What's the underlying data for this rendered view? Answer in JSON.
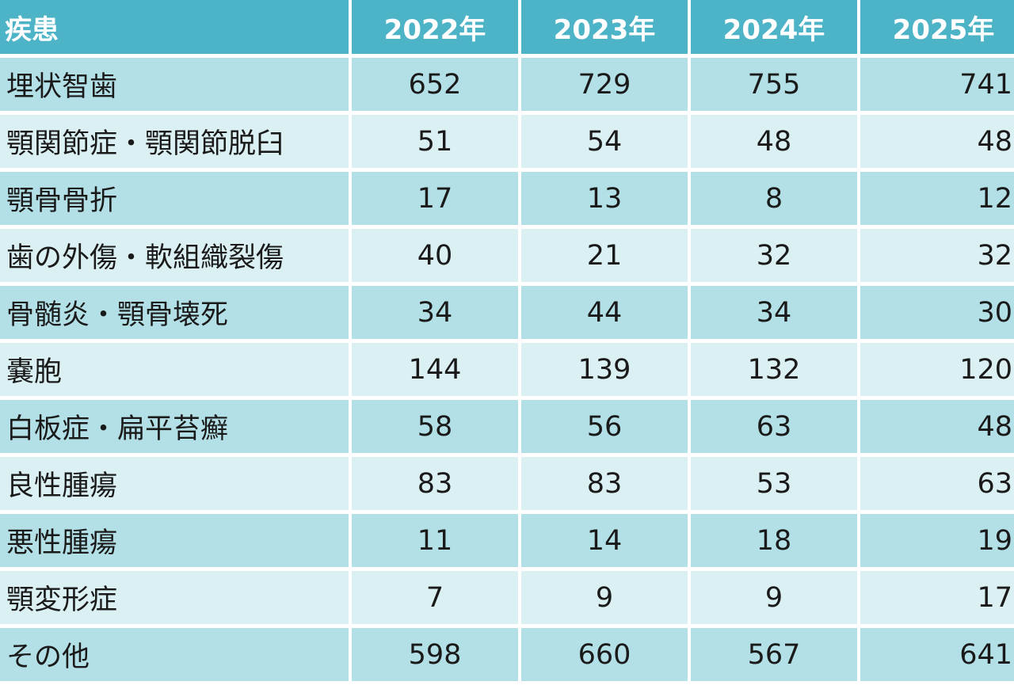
{
  "table": {
    "headers": [
      "疾患",
      "2022年",
      "2023年",
      "2024年",
      "2025年"
    ],
    "rows": [
      {
        "name": "埋状智歯",
        "values": [
          "652",
          "729",
          "755",
          "741"
        ]
      },
      {
        "name": "顎関節症・顎関節脱臼",
        "values": [
          "51",
          "54",
          "48",
          "48"
        ]
      },
      {
        "name": "顎骨骨折",
        "values": [
          "17",
          "13",
          "8",
          "12"
        ]
      },
      {
        "name": "歯の外傷・軟組織裂傷",
        "values": [
          "40",
          "21",
          "32",
          "32"
        ]
      },
      {
        "name": "骨髄炎・顎骨壊死",
        "values": [
          "34",
          "44",
          "34",
          "30"
        ]
      },
      {
        "name": "嚢胞",
        "values": [
          "144",
          "139",
          "132",
          "120"
        ]
      },
      {
        "name": "白板症・扁平苔癬",
        "values": [
          "58",
          "56",
          "63",
          "48"
        ]
      },
      {
        "name": "良性腫瘍",
        "values": [
          "83",
          "83",
          "53",
          "63"
        ]
      },
      {
        "name": "悪性腫瘍",
        "values": [
          "11",
          "14",
          "18",
          "19"
        ]
      },
      {
        "name": "顎変形症",
        "values": [
          "7",
          "9",
          "9",
          "17"
        ]
      },
      {
        "name": "その他",
        "values": [
          "598",
          "660",
          "567",
          "641"
        ]
      }
    ]
  },
  "colors": {
    "header_bg": "#4db3c6",
    "row_dark": "#b3e0e6",
    "row_light": "#dbf0f3"
  }
}
